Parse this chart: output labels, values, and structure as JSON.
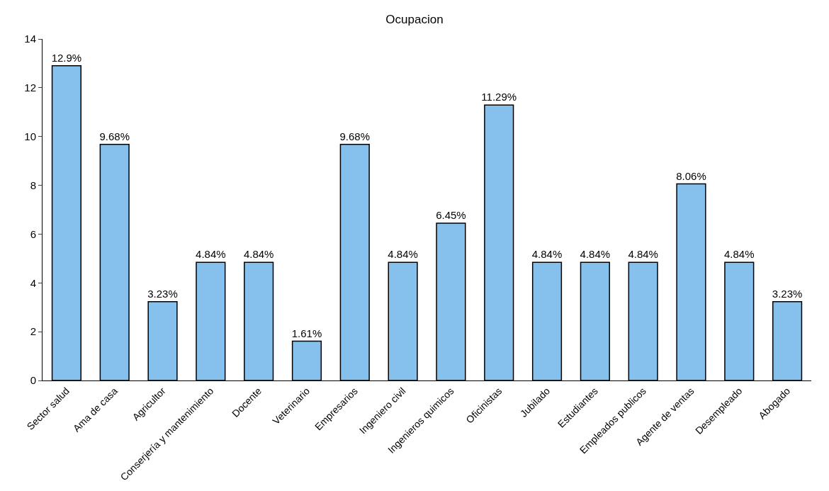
{
  "chart_data": {
    "type": "bar",
    "title": "Ocupacion",
    "categories": [
      "Sector salud",
      "Ama de casa",
      "Agricultor",
      "Conserjería y mantenimiento",
      "Docente",
      "Veterinario",
      "Empresarios",
      "Ingeniero civil",
      "Ingenieros quimicos",
      "Oficinistas",
      "Jubilado",
      "Estudiantes",
      "Empleados publicos",
      "Agente de ventas",
      "Desempleado",
      "Abogado"
    ],
    "values": [
      12.9,
      9.68,
      3.23,
      4.84,
      4.84,
      1.61,
      9.68,
      4.84,
      6.45,
      11.29,
      4.84,
      4.84,
      4.84,
      8.06,
      4.84,
      3.23
    ],
    "value_labels": [
      "12.9%",
      "9.68%",
      "3.23%",
      "4.84%",
      "4.84%",
      "1.61%",
      "9.68%",
      "4.84%",
      "6.45%",
      "11.29%",
      "4.84%",
      "4.84%",
      "4.84%",
      "8.06%",
      "4.84%",
      "3.23%"
    ],
    "color": "#85c1ec",
    "ylim": [
      0,
      14
    ],
    "yticks": [
      0,
      2,
      4,
      6,
      8,
      10,
      12,
      14
    ],
    "legend": false
  }
}
